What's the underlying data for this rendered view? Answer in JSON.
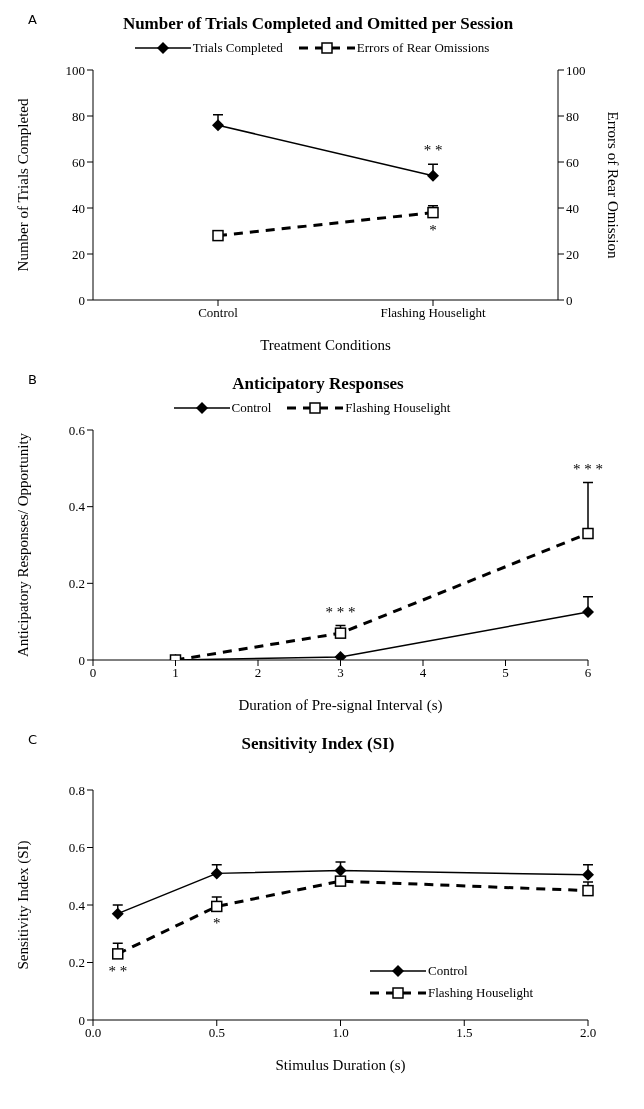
{
  "chart_data": [
    {
      "type": "line",
      "title": "Number of Trials Completed and Omitted per Session",
      "xlabel": "Treatment Conditions",
      "ylabel": "Number of Trials Completed",
      "y2label": "Errors of Rear Omission",
      "categories": [
        "Control",
        "Flashing Houselight"
      ],
      "series": [
        {
          "name": "Trials Completed",
          "color": "#000000",
          "values": [
            76,
            54
          ],
          "errors": [
            [
              76,
              80.5
            ],
            [
              54,
              59
            ]
          ],
          "marker": "diamond",
          "line_style": "solid"
        },
        {
          "name": "Errors of Rear Omissions",
          "color": "#000000",
          "values": [
            28,
            38
          ],
          "errors": [
            [
              28,
              29.5
            ],
            [
              38,
              41
            ]
          ],
          "marker": "square",
          "line_style": "dashed",
          "axis": "y2"
        }
      ],
      "ylim": [
        0,
        100
      ],
      "yticks": [
        0,
        20,
        40,
        60,
        80,
        100
      ],
      "y2lim": [
        0,
        100
      ],
      "y2ticks": [
        0,
        20,
        40,
        60,
        80,
        100
      ],
      "legend": "top",
      "annotations": [
        "A",
        {
          "text": "* *",
          "x": "Flashing Houselight",
          "y": 54
        },
        {
          "text": "*",
          "x": "Flashing Houselight",
          "y": 38
        }
      ]
    },
    {
      "type": "line",
      "title": "Anticipatory Responses",
      "xlabel": "Duration of Pre-signal Interval (s)",
      "ylabel": "Anticipatory Responses/ Opportunity",
      "x": [
        1,
        3,
        6
      ],
      "series": [
        {
          "name": "Control",
          "color": "#000000",
          "values": [
            0,
            0.008,
            0.125
          ],
          "errors": [
            null,
            null,
            [
              0.125,
              0.165
            ]
          ],
          "marker": "diamond",
          "line_style": "solid"
        },
        {
          "name": "Flashing Houselight",
          "color": "#000000",
          "values": [
            0,
            0.07,
            0.33
          ],
          "errors": [
            null,
            [
              0.07,
              0.09
            ],
            [
              0.33,
              0.463
            ]
          ],
          "marker": "square",
          "line_style": "dashed"
        }
      ],
      "xlim": [
        0,
        6
      ],
      "xticks": [
        0,
        1,
        2,
        3,
        4,
        5,
        6
      ],
      "ylim": [
        0,
        0.6
      ],
      "yticks": [
        0,
        0.2,
        0.4,
        0.6
      ],
      "legend": "top",
      "annotations": [
        "B",
        {
          "text": "* * *",
          "x": 3,
          "y": 0.07
        },
        {
          "text": "* * *",
          "x": 6,
          "y": 0.463
        }
      ]
    },
    {
      "type": "line",
      "title": "Sensitivity Index (SI)",
      "xlabel": "Stimulus Duration (s)",
      "ylabel": "Sensitivity Index (SI)",
      "x": [
        0.1,
        0.5,
        1,
        2
      ],
      "series": [
        {
          "name": "Control",
          "color": "#000000",
          "values": [
            0.37,
            0.51,
            0.52,
            0.505
          ],
          "errors": [
            [
              0.37,
              0.4
            ],
            [
              0.51,
              0.54
            ],
            [
              0.52,
              0.55
            ],
            [
              0.505,
              0.54
            ]
          ],
          "marker": "diamond",
          "line_style": "solid"
        },
        {
          "name": "Flashing Houselight",
          "color": "#000000",
          "values": [
            0.23,
            0.395,
            0.483,
            0.45
          ],
          "errors": [
            [
              0.23,
              0.267
            ],
            [
              0.395,
              0.428
            ],
            null,
            [
              0.45,
              0.48
            ]
          ],
          "marker": "square",
          "line_style": "dashed"
        }
      ],
      "xlim": [
        0,
        2
      ],
      "xticks": [
        {
          "value": 0,
          "label": "0.0"
        },
        {
          "value": 0.5,
          "label": "0.5"
        },
        {
          "value": 1,
          "label": "1.0"
        },
        {
          "value": 1.5,
          "label": "1.5"
        },
        {
          "value": 2,
          "label": "2.0"
        }
      ],
      "ylim": [
        0,
        0.8
      ],
      "yticks": [
        0,
        0.2,
        0.4,
        0.6,
        0.8
      ],
      "legend": "right",
      "annotations": [
        "C",
        {
          "text": "* *",
          "x": 0.1,
          "y": 0.23
        },
        {
          "text": "*",
          "x": 0.5,
          "y": 0.395
        }
      ]
    }
  ]
}
